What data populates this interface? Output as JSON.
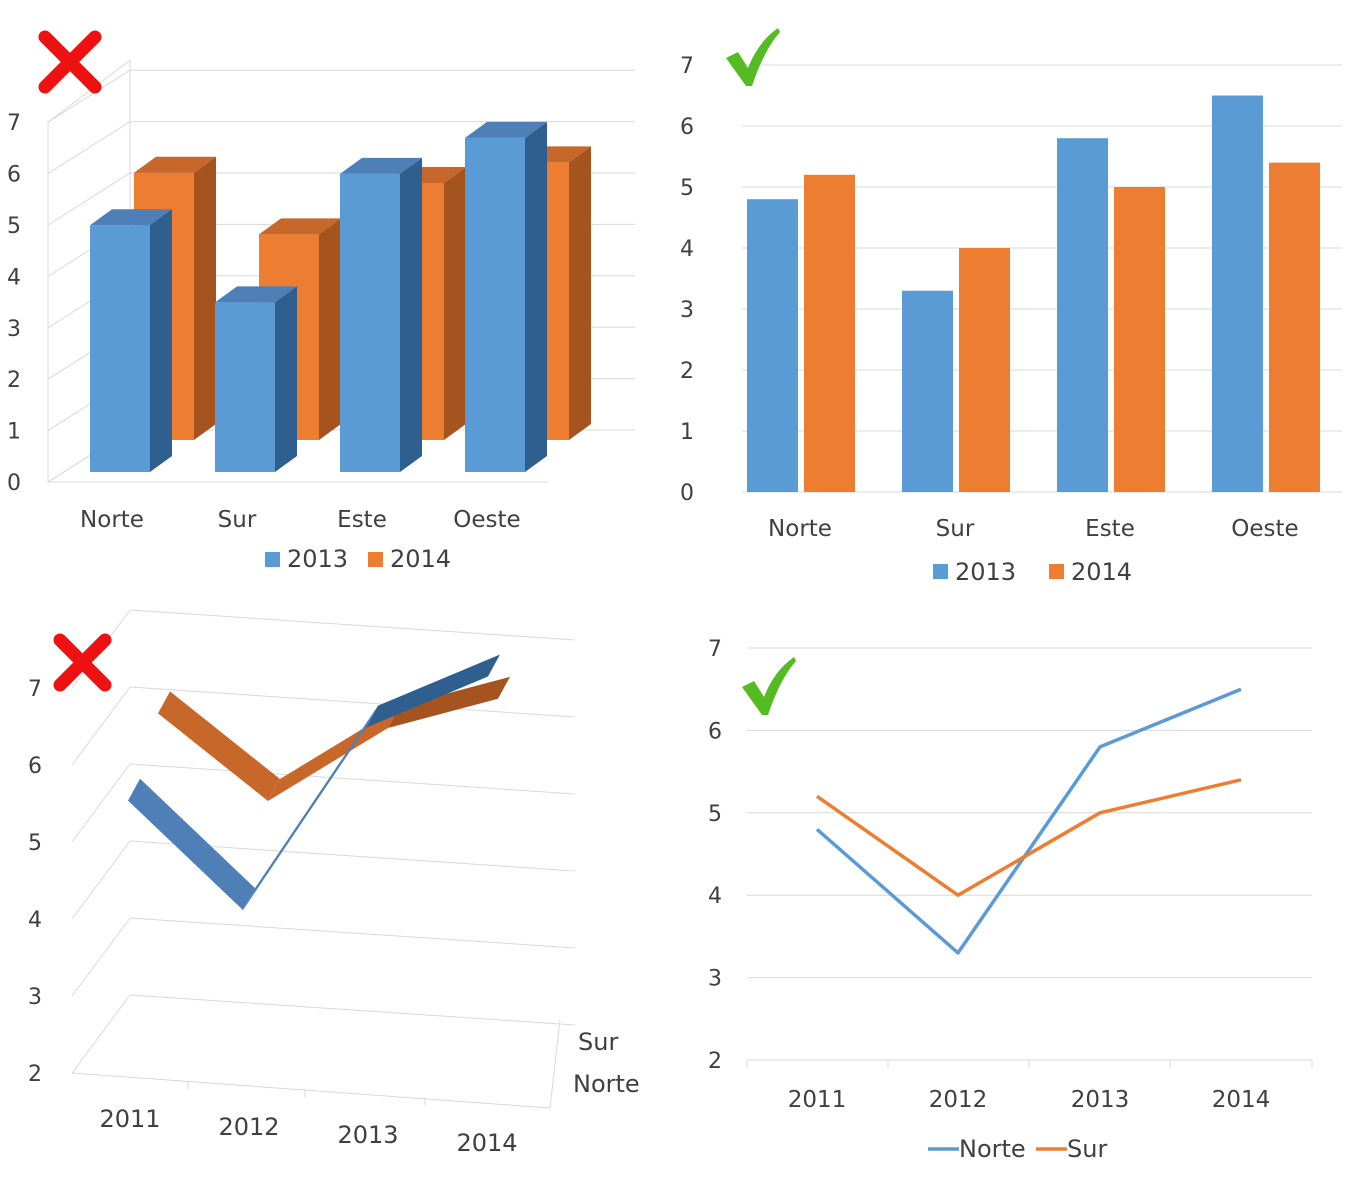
{
  "colors": {
    "blue": "#5b9bd5",
    "orange": "#ed7d31",
    "blue_dark": "#2e5f8f",
    "blue_top": "#4f7fb7",
    "orange_dark": "#a5531f",
    "orange_top": "#c8672a",
    "grid": "#d9d9d9",
    "text": "#404040",
    "cross": "#ee1111",
    "check": "#55bb22"
  },
  "icons": {
    "bad": "cross-icon",
    "good": "check-icon"
  },
  "chart_data": [
    {
      "id": "bar3d",
      "type": "bar",
      "style": "3d",
      "verdict": "bad",
      "categories": [
        "Norte",
        "Sur",
        "Este",
        "Oeste"
      ],
      "series": [
        {
          "name": "2013",
          "values": [
            4.8,
            3.3,
            5.8,
            6.5
          ],
          "color": "#5b9bd5"
        },
        {
          "name": "2014",
          "values": [
            5.2,
            4.0,
            5.0,
            5.4
          ],
          "color": "#ed7d31"
        }
      ],
      "yticks": [
        0,
        1,
        2,
        3,
        4,
        5,
        6,
        7
      ],
      "ylim": [
        0,
        7
      ],
      "legend": "bottom",
      "grid": true
    },
    {
      "id": "bar2d",
      "type": "bar",
      "style": "2d",
      "verdict": "good",
      "categories": [
        "Norte",
        "Sur",
        "Este",
        "Oeste"
      ],
      "series": [
        {
          "name": "2013",
          "values": [
            4.8,
            3.3,
            5.8,
            6.5
          ],
          "color": "#5b9bd5"
        },
        {
          "name": "2014",
          "values": [
            5.2,
            4.0,
            5.0,
            5.4
          ],
          "color": "#ed7d31"
        }
      ],
      "yticks": [
        0,
        1,
        2,
        3,
        4,
        5,
        6,
        7
      ],
      "ylim": [
        0,
        7
      ],
      "legend": "bottom",
      "grid": true
    },
    {
      "id": "line3d",
      "type": "line",
      "style": "3d",
      "verdict": "bad",
      "categories": [
        "2011",
        "2012",
        "2013",
        "2014"
      ],
      "series": [
        {
          "name": "Norte",
          "values": [
            4.8,
            3.3,
            5.8,
            6.5
          ],
          "color": "#5b9bd5"
        },
        {
          "name": "Sur",
          "values": [
            5.2,
            4.0,
            5.0,
            5.4
          ],
          "color": "#ed7d31"
        }
      ],
      "depth_labels": [
        "Sur",
        "Norte"
      ],
      "yticks": [
        2,
        3,
        4,
        5,
        6,
        7
      ],
      "ylim": [
        2,
        7
      ],
      "grid": true
    },
    {
      "id": "line2d",
      "type": "line",
      "style": "2d",
      "verdict": "good",
      "categories": [
        "2011",
        "2012",
        "2013",
        "2014"
      ],
      "series": [
        {
          "name": "Norte",
          "values": [
            4.8,
            3.3,
            5.8,
            6.5
          ],
          "color": "#5b9bd5"
        },
        {
          "name": "Sur",
          "values": [
            5.2,
            4.0,
            5.0,
            5.4
          ],
          "color": "#ed7d31"
        }
      ],
      "yticks": [
        2,
        3,
        4,
        5,
        6,
        7
      ],
      "ylim": [
        2,
        7
      ],
      "legend": "bottom",
      "grid": true
    }
  ]
}
